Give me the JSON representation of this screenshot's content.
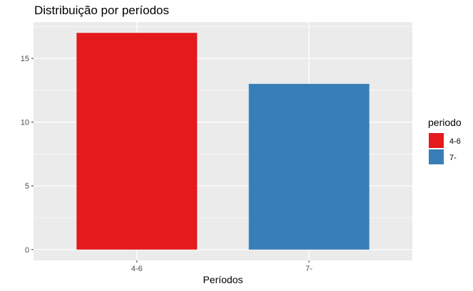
{
  "chart_data": {
    "type": "bar",
    "title": "Distribuição por períodos",
    "xlabel": "Períodos",
    "ylabel": "",
    "categories": [
      "4-6",
      "7-"
    ],
    "values": [
      17,
      13
    ],
    "colors": [
      "#e41a1c",
      "#377eb8"
    ],
    "ylim": [
      -0.85,
      17.85
    ],
    "yticks": [
      0,
      5,
      10,
      15
    ],
    "grid": true,
    "panel_background": "#ebebeb",
    "gridline_color": "#ffffff",
    "legend": {
      "title": "periodo",
      "position": "right",
      "entries": [
        "4-6",
        "7-"
      ]
    }
  }
}
